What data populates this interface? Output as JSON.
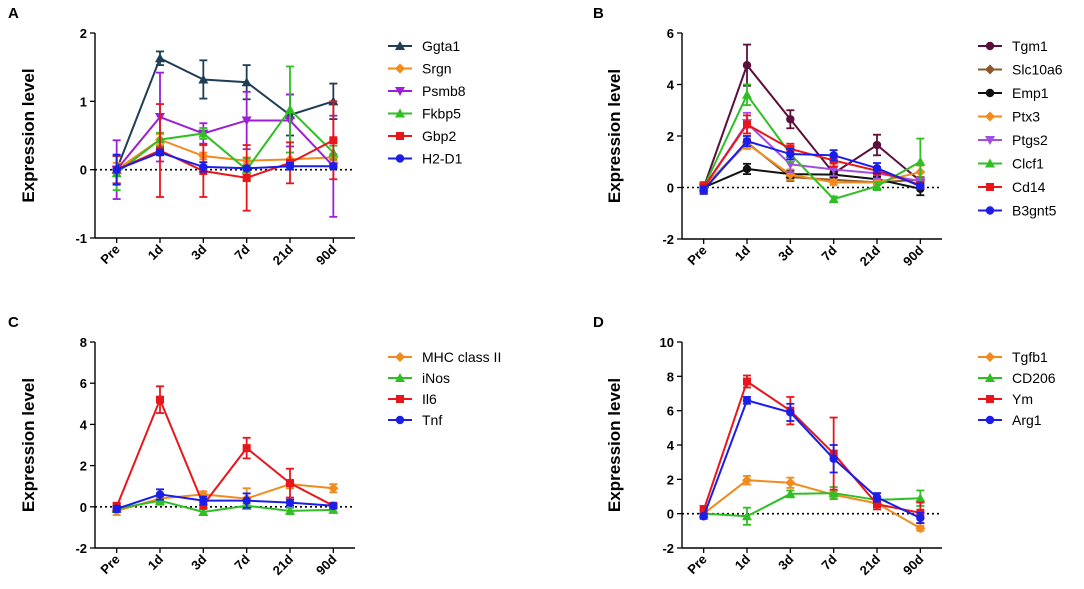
{
  "figure": {
    "type": "multi-panel line charts with error bars"
  },
  "chart_data": [
    {
      "panel": "A",
      "type": "line",
      "ylabel": "Expression level",
      "categories": [
        "Pre",
        "1d",
        "3d",
        "7d",
        "21d",
        "90d"
      ],
      "ylim": [
        -1,
        2
      ],
      "yticks": [
        -1,
        0,
        1,
        2
      ],
      "series": [
        {
          "name": "Ggta1",
          "color": "#1f3d57",
          "marker": "triangle-up",
          "values": [
            0,
            1.63,
            1.32,
            1.28,
            0.8,
            1.0
          ],
          "errors": [
            0.2,
            0.1,
            0.28,
            0.25,
            0.3,
            0.26
          ]
        },
        {
          "name": "Srgn",
          "color": "#f28a1e",
          "marker": "diamond",
          "values": [
            0,
            0.44,
            0.2,
            0.13,
            0.15,
            0.18
          ],
          "errors": [
            0.1,
            0.08,
            0.05,
            0.05,
            0.1,
            0.05
          ]
        },
        {
          "name": "Psmb8",
          "color": "#9a1fd6",
          "marker": "triangle-down",
          "values": [
            0,
            0.77,
            0.53,
            0.72,
            0.72,
            0.05
          ],
          "errors": [
            0.43,
            0.65,
            0.15,
            0.42,
            0.38,
            0.74
          ]
        },
        {
          "name": "Fkbp5",
          "color": "#2fbf24",
          "marker": "triangle-up",
          "values": [
            -0.05,
            0.44,
            0.53,
            0.0,
            0.88,
            0.25
          ],
          "errors": [
            0.25,
            0.1,
            0.08,
            0.17,
            0.63,
            0.1
          ]
        },
        {
          "name": "Gbp2",
          "color": "#e8161b",
          "marker": "square",
          "values": [
            0,
            0.28,
            -0.02,
            -0.12,
            0.1,
            0.43
          ],
          "errors": [
            0.2,
            0.68,
            0.38,
            0.48,
            0.3,
            0.57
          ]
        },
        {
          "name": "H2-D1",
          "color": "#1a1ee8",
          "marker": "circle",
          "values": [
            0,
            0.25,
            0.04,
            0.02,
            0.05,
            0.05
          ],
          "errors": [
            0.22,
            0.04,
            0.07,
            0.03,
            0.05,
            0.03
          ]
        }
      ]
    },
    {
      "panel": "B",
      "type": "line",
      "ylabel": "Expression level",
      "categories": [
        "Pre",
        "1d",
        "3d",
        "7d",
        "21d",
        "90d"
      ],
      "ylim": [
        -2,
        6
      ],
      "yticks": [
        -2,
        0,
        2,
        4,
        6
      ],
      "series": [
        {
          "name": "Tgm1",
          "color": "#5c0f3c",
          "marker": "circle",
          "values": [
            0,
            4.75,
            2.65,
            0.55,
            1.65,
            0.25
          ],
          "errors": [
            0.2,
            0.8,
            0.35,
            0.15,
            0.4,
            0.15
          ]
        },
        {
          "name": "Slc10a6",
          "color": "#8b5a2b",
          "marker": "diamond",
          "values": [
            0,
            1.75,
            0.4,
            0.3,
            0.2,
            0.3
          ],
          "errors": [
            0.2,
            0.15,
            0.15,
            0.1,
            0.1,
            0.1
          ]
        },
        {
          "name": "Emp1",
          "color": "#111111",
          "marker": "circle",
          "values": [
            0,
            0.72,
            0.52,
            0.5,
            0.32,
            -0.05
          ],
          "errors": [
            0.2,
            0.2,
            0.15,
            0.1,
            0.1,
            0.25
          ]
        },
        {
          "name": "Ptx3",
          "color": "#f28a1e",
          "marker": "diamond",
          "values": [
            0,
            1.7,
            0.5,
            0.2,
            0.2,
            0.6
          ],
          "errors": [
            0.2,
            0.2,
            0.2,
            0.1,
            0.1,
            0.25
          ]
        },
        {
          "name": "Ptgs2",
          "color": "#a14de6",
          "marker": "triangle-down",
          "values": [
            0,
            2.5,
            0.9,
            0.7,
            0.55,
            0.25
          ],
          "errors": [
            0.2,
            0.4,
            0.3,
            0.25,
            0.2,
            0.1
          ]
        },
        {
          "name": "Clcf1",
          "color": "#2fbf24",
          "marker": "triangle-up",
          "values": [
            0,
            3.6,
            1.3,
            -0.45,
            0.05,
            1.0
          ],
          "errors": [
            0.2,
            0.4,
            0.3,
            0.1,
            0.15,
            0.9
          ]
        },
        {
          "name": "Cd14",
          "color": "#e8161b",
          "marker": "square",
          "values": [
            0,
            2.45,
            1.5,
            1.05,
            0.65,
            0.1
          ],
          "errors": [
            0.2,
            0.35,
            0.2,
            0.25,
            0.15,
            0.1
          ]
        },
        {
          "name": "B3gnt5",
          "color": "#1a1ee8",
          "marker": "circle",
          "values": [
            -0.1,
            1.8,
            1.3,
            1.25,
            0.75,
            0.05
          ],
          "errors": [
            0.15,
            0.2,
            0.2,
            0.2,
            0.2,
            0.1
          ]
        }
      ]
    },
    {
      "panel": "C",
      "type": "line",
      "ylabel": "Expression level",
      "categories": [
        "Pre",
        "1d",
        "3d",
        "7d",
        "21d",
        "90d"
      ],
      "ylim": [
        -2,
        8
      ],
      "yticks": [
        -2,
        0,
        2,
        4,
        6,
        8
      ],
      "series": [
        {
          "name": "MHC class II",
          "color": "#f28a1e",
          "marker": "diamond",
          "values": [
            -0.2,
            0.4,
            0.6,
            0.4,
            1.1,
            0.9
          ],
          "errors": [
            0.2,
            0.2,
            0.15,
            0.5,
            0.2,
            0.2
          ]
        },
        {
          "name": "iNos",
          "color": "#2fbf24",
          "marker": "triangle-up",
          "values": [
            -0.1,
            0.3,
            -0.25,
            0.05,
            -0.2,
            -0.15
          ],
          "errors": [
            0.15,
            0.2,
            0.15,
            0.1,
            0.15,
            0.1
          ]
        },
        {
          "name": "Il6",
          "color": "#e8161b",
          "marker": "square",
          "values": [
            0,
            5.2,
            0.1,
            2.85,
            1.15,
            0.05
          ],
          "errors": [
            0.2,
            0.65,
            0.2,
            0.5,
            0.7,
            0.1
          ]
        },
        {
          "name": "Tnf",
          "color": "#1a1ee8",
          "marker": "circle",
          "values": [
            -0.1,
            0.6,
            0.3,
            0.3,
            0.2,
            0.05
          ],
          "errors": [
            0.15,
            0.25,
            0.2,
            0.35,
            0.15,
            0.1
          ]
        }
      ]
    },
    {
      "panel": "D",
      "type": "line",
      "ylabel": "Expression level",
      "categories": [
        "Pre",
        "1d",
        "3d",
        "7d",
        "21d",
        "90d"
      ],
      "ylim": [
        -2,
        10
      ],
      "yticks": [
        -2,
        0,
        2,
        4,
        6,
        8,
        10
      ],
      "series": [
        {
          "name": "Tgfb1",
          "color": "#f28a1e",
          "marker": "diamond",
          "values": [
            0,
            1.95,
            1.8,
            1.1,
            0.6,
            -0.85
          ],
          "errors": [
            0.2,
            0.25,
            0.3,
            0.2,
            0.2,
            0.15
          ]
        },
        {
          "name": "CD206",
          "color": "#2fbf24",
          "marker": "triangle-up",
          "values": [
            0,
            -0.15,
            1.15,
            1.2,
            0.8,
            0.9
          ],
          "errors": [
            0.2,
            0.5,
            0.2,
            0.35,
            0.2,
            0.45
          ]
        },
        {
          "name": "Ym",
          "color": "#e8161b",
          "marker": "square",
          "values": [
            0.2,
            7.7,
            6.0,
            3.5,
            0.55,
            0.05
          ],
          "errors": [
            0.25,
            0.35,
            0.8,
            2.1,
            0.3,
            0.6
          ]
        },
        {
          "name": "Arg1",
          "color": "#1a1ee8",
          "marker": "circle",
          "values": [
            -0.15,
            6.6,
            5.9,
            3.2,
            0.95,
            -0.25
          ],
          "errors": [
            0.15,
            0.2,
            0.5,
            0.8,
            0.25,
            0.3
          ]
        }
      ]
    }
  ]
}
